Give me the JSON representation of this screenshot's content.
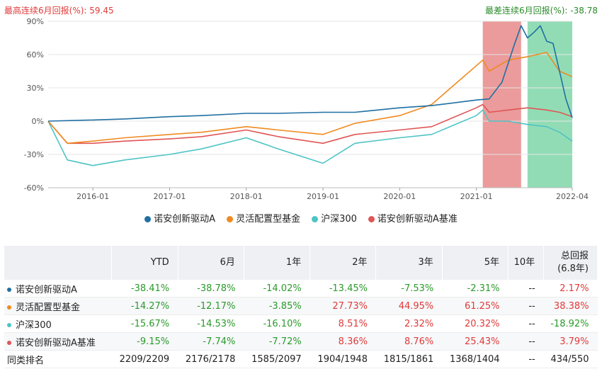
{
  "header": {
    "max_label": "最高连续6月回报(%):",
    "max_value": "59.45",
    "min_label": "最差连续6月回报(%):",
    "min_value": "-38.78"
  },
  "chart_data": {
    "type": "line",
    "title": "",
    "xlabel": "",
    "ylabel": "",
    "y_unit": "%",
    "ylim": [
      -60,
      90
    ],
    "y_ticks": [
      "90%",
      "60%",
      "30%",
      "0%",
      "-30%",
      "-60%"
    ],
    "x_ticks": [
      "2016-01",
      "2017-01",
      "2018-01",
      "2019-01",
      "2020-01",
      "2021-01",
      "2022-04"
    ],
    "x_range": [
      "2015-06",
      "2022-04"
    ],
    "grid": true,
    "legend_position": "bottom",
    "shaded_periods": [
      {
        "from": "2021-02",
        "to": "2021-08",
        "color": "#e88a8a",
        "meaning": "max 6-month return"
      },
      {
        "from": "2021-09",
        "to": "2022-04",
        "color": "#7fd6a8",
        "meaning": "min 6-month return"
      }
    ],
    "series": [
      {
        "name": "诺安创新驱动A",
        "color": "#1f6fa3",
        "x": [
          "2015-06",
          "2016-01",
          "2016-06",
          "2017-01",
          "2017-06",
          "2018-01",
          "2018-06",
          "2019-01",
          "2019-06",
          "2020-01",
          "2020-06",
          "2021-01",
          "2021-03",
          "2021-05",
          "2021-07",
          "2021-08",
          "2021-09",
          "2021-10",
          "2021-11",
          "2021-12",
          "2022-01",
          "2022-02",
          "2022-03",
          "2022-04"
        ],
        "y": [
          0,
          1,
          2,
          4,
          5,
          7,
          7,
          8,
          8,
          12,
          14,
          19,
          20,
          35,
          70,
          86,
          75,
          80,
          86,
          72,
          70,
          45,
          20,
          3
        ]
      },
      {
        "name": "灵活配置型基金",
        "color": "#f08a20",
        "x": [
          "2015-06",
          "2015-09",
          "2016-01",
          "2016-06",
          "2017-01",
          "2017-06",
          "2018-01",
          "2018-06",
          "2019-01",
          "2019-06",
          "2020-01",
          "2020-06",
          "2020-09",
          "2021-01",
          "2021-02",
          "2021-03",
          "2021-06",
          "2021-09",
          "2021-12",
          "2022-02",
          "2022-04"
        ],
        "y": [
          0,
          -20,
          -18,
          -15,
          -12,
          -10,
          -5,
          -8,
          -12,
          -2,
          5,
          15,
          30,
          50,
          55,
          45,
          55,
          58,
          62,
          45,
          40
        ]
      },
      {
        "name": "沪深300",
        "color": "#4ec4c4",
        "x": [
          "2015-06",
          "2015-09",
          "2016-01",
          "2016-06",
          "2017-01",
          "2017-06",
          "2018-01",
          "2018-06",
          "2019-01",
          "2019-06",
          "2020-01",
          "2020-06",
          "2021-01",
          "2021-02",
          "2021-03",
          "2021-06",
          "2021-09",
          "2021-12",
          "2022-02",
          "2022-04"
        ],
        "y": [
          0,
          -35,
          -40,
          -35,
          -30,
          -25,
          -15,
          -25,
          -38,
          -20,
          -15,
          -12,
          5,
          10,
          0,
          0,
          -3,
          -5,
          -10,
          -18
        ]
      },
      {
        "name": "诺安创新驱动A基准",
        "color": "#e05555",
        "x": [
          "2015-06",
          "2015-09",
          "2016-01",
          "2016-06",
          "2017-01",
          "2017-06",
          "2018-01",
          "2018-06",
          "2019-01",
          "2019-06",
          "2020-01",
          "2020-06",
          "2021-01",
          "2021-02",
          "2021-03",
          "2021-06",
          "2021-09",
          "2021-12",
          "2022-02",
          "2022-04"
        ],
        "y": [
          0,
          -20,
          -20,
          -18,
          -16,
          -14,
          -8,
          -14,
          -20,
          -12,
          -8,
          -5,
          12,
          15,
          8,
          10,
          12,
          10,
          8,
          4
        ]
      }
    ]
  },
  "table": {
    "headers": [
      "",
      "YTD",
      "6月",
      "1年",
      "2年",
      "3年",
      "5年",
      "10年",
      "总回报",
      "(6.8年)"
    ],
    "rows": [
      {
        "name": "诺安创新驱动A",
        "color": "#1f6fa3",
        "values": [
          "-38.41%",
          "-38.78%",
          "-14.02%",
          "-13.45%",
          "-7.53%",
          "-2.31%",
          "--",
          "2.17%"
        ],
        "signs": [
          "neg",
          "neg",
          "neg",
          "neg",
          "neg",
          "neg",
          "neu",
          "pos"
        ]
      },
      {
        "name": "灵活配置型基金",
        "color": "#f08a20",
        "values": [
          "-14.27%",
          "-12.17%",
          "-3.85%",
          "27.73%",
          "44.95%",
          "61.25%",
          "--",
          "38.38%"
        ],
        "signs": [
          "neg",
          "neg",
          "neg",
          "pos",
          "pos",
          "pos",
          "neu",
          "pos"
        ]
      },
      {
        "name": "沪深300",
        "color": "#4ec4c4",
        "values": [
          "-15.67%",
          "-14.53%",
          "-16.10%",
          "8.51%",
          "2.32%",
          "20.32%",
          "--",
          "-18.92%"
        ],
        "signs": [
          "neg",
          "neg",
          "neg",
          "pos",
          "pos",
          "pos",
          "neu",
          "neg"
        ]
      },
      {
        "name": "诺安创新驱动A基准",
        "color": "#e05555",
        "values": [
          "-9.15%",
          "-7.74%",
          "-7.72%",
          "8.36%",
          "8.76%",
          "25.43%",
          "--",
          "3.79%"
        ],
        "signs": [
          "neg",
          "neg",
          "neg",
          "pos",
          "pos",
          "pos",
          "neu",
          "pos"
        ]
      },
      {
        "name": "同类排名",
        "color": "",
        "values": [
          "2209/2209",
          "2176/2178",
          "1585/2097",
          "1904/1948",
          "1815/1861",
          "1368/1404",
          "--",
          "434/550"
        ],
        "signs": [
          "neu",
          "neu",
          "neu",
          "neu",
          "neu",
          "neu",
          "neu",
          "neu"
        ]
      }
    ]
  }
}
